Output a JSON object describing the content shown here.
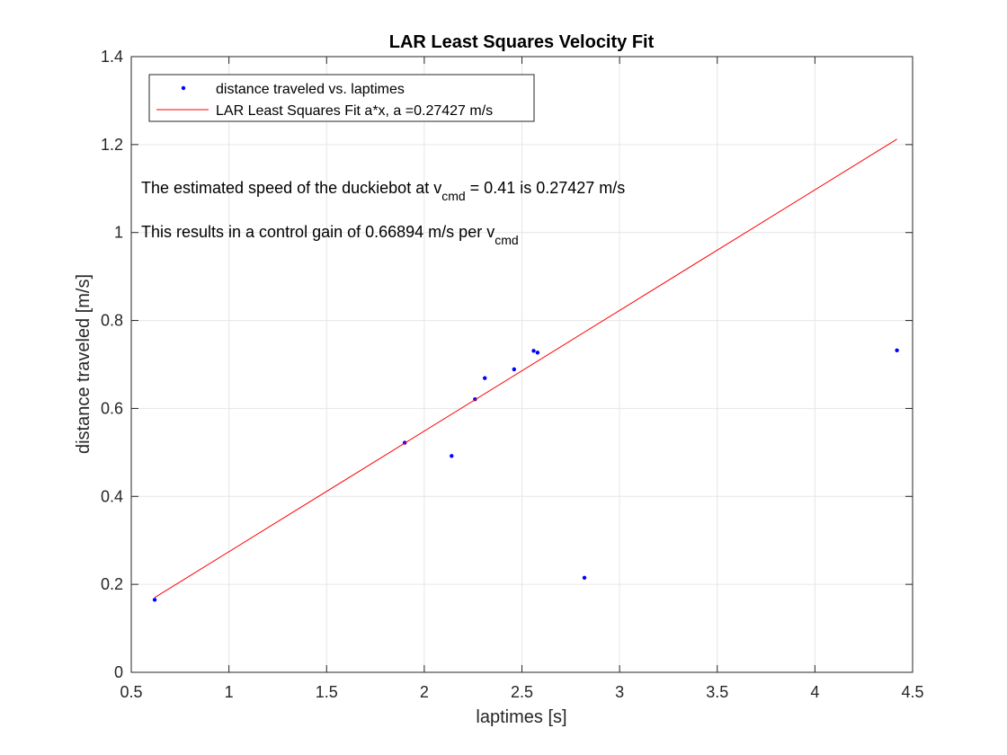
{
  "chart_data": {
    "type": "scatter",
    "title": "LAR Least Squares Velocity Fit",
    "xlabel": "laptimes [s]",
    "ylabel": "distance traveled [m/s]",
    "xlim": [
      0.5,
      4.5
    ],
    "ylim": [
      0,
      1.4
    ],
    "xticks": [
      "0.5",
      "1",
      "1.5",
      "2",
      "2.5",
      "3",
      "3.5",
      "4",
      "4.5"
    ],
    "yticks": [
      "0",
      "0.2",
      "0.4",
      "0.6",
      "0.8",
      "1",
      "1.2",
      "1.4"
    ],
    "grid": true,
    "legend_position": "top-left",
    "series": [
      {
        "name": "distance traveled vs. laptimes",
        "kind": "points",
        "color": "#0000ff",
        "x": [
          0.62,
          1.9,
          2.14,
          2.26,
          2.31,
          2.46,
          2.56,
          2.58,
          2.82,
          4.42
        ],
        "y": [
          0.165,
          0.522,
          0.492,
          0.621,
          0.669,
          0.689,
          0.731,
          0.727,
          0.215,
          0.732
        ]
      },
      {
        "name": "LAR Least Squares Fit a*x, a =0.27427 m/s",
        "kind": "line",
        "color": "#ff0000",
        "x": [
          0.62,
          4.42
        ],
        "y": [
          0.17,
          1.2123
        ]
      }
    ],
    "annotations": [
      {
        "text": "The estimated speed of the duckiebot at v",
        "sub": "cmd",
        "after": " = 0.41 is 0.27427 m/s"
      },
      {
        "text": "This results in a control gain of 0.66894 m/s per v",
        "sub": "cmd",
        "after": ""
      }
    ]
  }
}
